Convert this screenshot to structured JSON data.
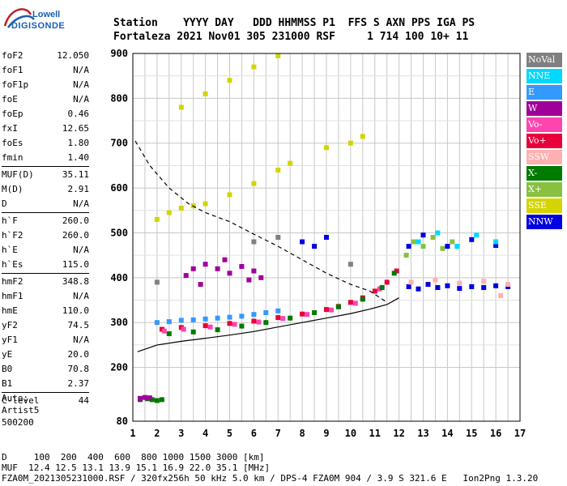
{
  "logo": {
    "line1": "Lowell",
    "line2": "DIGISONDE"
  },
  "header": {
    "row1": "Station    YYYY DAY   DDD HHMMSS P1  FFS S AXN PPS IGA PS",
    "row2": "Fortaleza 2021 Nov01 305 231000 RSF     1 714 100 10+ 11"
  },
  "params": [
    [
      {
        "k": "foF2",
        "v": "12.050"
      },
      {
        "k": "foF1",
        "v": "N/A"
      },
      {
        "k": "foF1p",
        "v": "N/A"
      },
      {
        "k": "foE",
        "v": "N/A"
      },
      {
        "k": "foEp",
        "v": "0.46"
      },
      {
        "k": "fxI",
        "v": "12.65"
      },
      {
        "k": "foEs",
        "v": "1.80"
      },
      {
        "k": "fmin",
        "v": "1.40"
      }
    ],
    [
      {
        "k": "MUF(D)",
        "v": "35.11"
      },
      {
        "k": "M(D)",
        "v": "2.91"
      },
      {
        "k": "D",
        "v": "N/A"
      }
    ],
    [
      {
        "k": "h`F",
        "v": "260.0"
      },
      {
        "k": "h`F2",
        "v": "260.0"
      },
      {
        "k": "h`E",
        "v": "N/A"
      },
      {
        "k": "h`Es",
        "v": "115.0"
      }
    ],
    [
      {
        "k": "hmF2",
        "v": "348.8"
      },
      {
        "k": "hmF1",
        "v": "N/A"
      },
      {
        "k": "hmE",
        "v": "110.0"
      },
      {
        "k": "yF2",
        "v": "74.5"
      },
      {
        "k": "yF1",
        "v": "N/A"
      },
      {
        "k": "yE",
        "v": "20.0"
      },
      {
        "k": "B0",
        "v": "70.8"
      },
      {
        "k": "B1",
        "v": "2.37"
      }
    ],
    [
      {
        "k": "C-level",
        "v": "44"
      }
    ]
  ],
  "auto": {
    "l1": "Auto:",
    "l2": "Artist5",
    "l3": "500200"
  },
  "legend": [
    {
      "label": "NoVal",
      "color": "#808080"
    },
    {
      "label": "NNE",
      "color": "#00d8ff"
    },
    {
      "label": "E",
      "color": "#3399ff"
    },
    {
      "label": "W",
      "color": "#a0009a"
    },
    {
      "label": "Vo-",
      "color": "#ff44b0"
    },
    {
      "label": "Vo+",
      "color": "#e8003a"
    },
    {
      "label": "SSW",
      "color": "#ffb0b0"
    },
    {
      "label": "X-",
      "color": "#007a00"
    },
    {
      "label": "X+",
      "color": "#88c040"
    },
    {
      "label": "SSE",
      "color": "#d4d400"
    },
    {
      "label": "NNW",
      "color": "#0000e0"
    }
  ],
  "footer": {
    "l1": "D     100  200  400  600  800 1000 1500 3000 [km]",
    "l2": "MUF  12.4 12.5 13.1 13.9 15.1 16.9 22.0 35.1 [MHz]",
    "l3": "FZA0M_2021305231000.RSF / 320fx256h 50 kHz 5.0 km / DPS-4 FZA0M 904 / 3.9 S 321.6 E   Ion2Png 1.3.20"
  },
  "chart_data": {
    "type": "scatter",
    "xlim": [
      1,
      17
    ],
    "ylim": [
      80,
      900
    ],
    "x_ticks": [
      1,
      2,
      3,
      4,
      5,
      6,
      7,
      8,
      9,
      10,
      11,
      12,
      13,
      14,
      15,
      16,
      17
    ],
    "y_ticks": [
      80,
      200,
      300,
      400,
      500,
      600,
      700,
      800,
      900
    ],
    "grid": true,
    "series": [
      {
        "type": "line",
        "style": "solid",
        "color": "#000000",
        "points": [
          [
            1.2,
            235
          ],
          [
            2,
            250
          ],
          [
            3,
            258
          ],
          [
            4,
            265
          ],
          [
            5,
            272
          ],
          [
            6,
            280
          ],
          [
            7,
            290
          ],
          [
            8,
            300
          ],
          [
            9,
            310
          ],
          [
            10,
            320
          ],
          [
            10.8,
            330
          ],
          [
            11.5,
            340
          ],
          [
            12,
            355
          ]
        ]
      },
      {
        "type": "line",
        "style": "dashed",
        "color": "#000000",
        "points": [
          [
            1.1,
            705
          ],
          [
            1.7,
            650
          ],
          [
            2.5,
            600
          ],
          [
            3.3,
            565
          ],
          [
            4,
            545
          ],
          [
            5,
            525
          ],
          [
            6,
            497
          ],
          [
            7,
            470
          ],
          [
            8,
            440
          ],
          [
            9,
            410
          ],
          [
            10,
            385
          ],
          [
            10.8,
            370
          ],
          [
            11.5,
            345
          ]
        ]
      },
      {
        "type": "trace",
        "name": "E",
        "color": "#3399ff",
        "points": [
          [
            2,
            300
          ],
          [
            2.5,
            302
          ],
          [
            3,
            305
          ],
          [
            3.5,
            306
          ],
          [
            4,
            308
          ],
          [
            4.5,
            310
          ],
          [
            5,
            312
          ],
          [
            5.5,
            314
          ],
          [
            6,
            318
          ],
          [
            6.5,
            322
          ],
          [
            7,
            326
          ]
        ]
      },
      {
        "type": "trace",
        "name": "W",
        "color": "#a0009a",
        "points": [
          [
            3.2,
            405
          ],
          [
            3.5,
            420
          ],
          [
            4,
            430
          ],
          [
            4.5,
            420
          ],
          [
            5,
            410
          ],
          [
            5.5,
            425
          ],
          [
            6,
            415
          ],
          [
            6.3,
            400
          ],
          [
            3.8,
            385
          ],
          [
            4.8,
            440
          ],
          [
            5.8,
            395
          ]
        ]
      },
      {
        "type": "trace",
        "name": "Vo+",
        "color": "#e8003a",
        "points": [
          [
            2.2,
            285
          ],
          [
            3,
            289
          ],
          [
            4,
            293
          ],
          [
            5,
            298
          ],
          [
            6,
            303
          ],
          [
            7,
            311
          ],
          [
            8,
            319
          ],
          [
            9,
            329
          ],
          [
            9.5,
            336
          ],
          [
            10,
            345
          ],
          [
            10.5,
            355
          ],
          [
            11,
            370
          ],
          [
            11.5,
            390
          ],
          [
            11.9,
            415
          ]
        ]
      },
      {
        "type": "trace",
        "name": "Vo-",
        "color": "#ff44b0",
        "points": [
          [
            2.3,
            281
          ],
          [
            3.1,
            285
          ],
          [
            4.2,
            290
          ],
          [
            5.2,
            296
          ],
          [
            6.2,
            301
          ],
          [
            7.2,
            309
          ],
          [
            8.2,
            318
          ],
          [
            9.2,
            328
          ],
          [
            10.2,
            343
          ],
          [
            11.2,
            375
          ]
        ]
      },
      {
        "type": "trace",
        "name": "X-",
        "color": "#007a00",
        "points": [
          [
            2.5,
            275
          ],
          [
            3.5,
            279
          ],
          [
            4.5,
            284
          ],
          [
            5.5,
            292
          ],
          [
            6.5,
            300
          ],
          [
            7.5,
            310
          ],
          [
            8.5,
            322
          ],
          [
            9.5,
            335
          ],
          [
            10.5,
            352
          ],
          [
            11.3,
            378
          ],
          [
            11.8,
            410
          ]
        ]
      },
      {
        "type": "trace",
        "name": "X+",
        "color": "#88c040",
        "points": [
          [
            12.3,
            450
          ],
          [
            12.6,
            480
          ],
          [
            13,
            470
          ],
          [
            13.4,
            490
          ],
          [
            13.8,
            465
          ],
          [
            14.2,
            480
          ]
        ]
      },
      {
        "type": "trace",
        "name": "SSE",
        "color": "#d4d400",
        "points": [
          [
            2,
            530
          ],
          [
            2.5,
            545
          ],
          [
            3,
            555
          ],
          [
            3.5,
            560
          ],
          [
            4,
            565
          ],
          [
            5,
            585
          ],
          [
            6,
            610
          ],
          [
            7,
            640
          ],
          [
            7.5,
            655
          ],
          [
            3,
            780
          ],
          [
            4,
            810
          ],
          [
            5,
            840
          ],
          [
            6,
            870
          ],
          [
            7,
            895
          ],
          [
            9,
            690
          ],
          [
            10,
            700
          ],
          [
            10.5,
            715
          ]
        ]
      },
      {
        "type": "trace",
        "name": "NNW",
        "color": "#0000e0",
        "points": [
          [
            12.4,
            380
          ],
          [
            12.8,
            375
          ],
          [
            13.2,
            385
          ],
          [
            13.6,
            378
          ],
          [
            14,
            382
          ],
          [
            14.5,
            376
          ],
          [
            15,
            380
          ],
          [
            15.5,
            378
          ],
          [
            16,
            382
          ],
          [
            16.5,
            380
          ],
          [
            8,
            480
          ],
          [
            8.5,
            470
          ],
          [
            9,
            490
          ],
          [
            12.4,
            470
          ],
          [
            13,
            495
          ],
          [
            14,
            470
          ],
          [
            15,
            485
          ],
          [
            16,
            472
          ]
        ]
      },
      {
        "type": "trace",
        "name": "NNE",
        "color": "#00d8ff",
        "points": [
          [
            12.8,
            480
          ],
          [
            13.6,
            500
          ],
          [
            14.4,
            470
          ],
          [
            15.2,
            495
          ],
          [
            16,
            480
          ]
        ]
      },
      {
        "type": "trace",
        "name": "SSW",
        "color": "#ffb0b0",
        "points": [
          [
            12.5,
            390
          ],
          [
            13.5,
            395
          ],
          [
            14.5,
            388
          ],
          [
            15.5,
            392
          ],
          [
            16.5,
            385
          ],
          [
            16.2,
            360
          ]
        ]
      },
      {
        "type": "trace",
        "name": "NoVal",
        "color": "#808080",
        "points": [
          [
            2,
            390
          ],
          [
            6,
            480
          ],
          [
            7,
            490
          ],
          [
            10,
            430
          ]
        ]
      },
      {
        "type": "trace",
        "name": "Es",
        "color": "#007a00",
        "points": [
          [
            1.3,
            128
          ],
          [
            1.6,
            130
          ],
          [
            1.8,
            128
          ],
          [
            2,
            126
          ],
          [
            2.2,
            128
          ]
        ]
      },
      {
        "type": "trace",
        "name": "Es-W",
        "color": "#a0009a",
        "points": [
          [
            1.3,
            131
          ],
          [
            1.5,
            133
          ],
          [
            1.7,
            132
          ]
        ]
      }
    ]
  }
}
